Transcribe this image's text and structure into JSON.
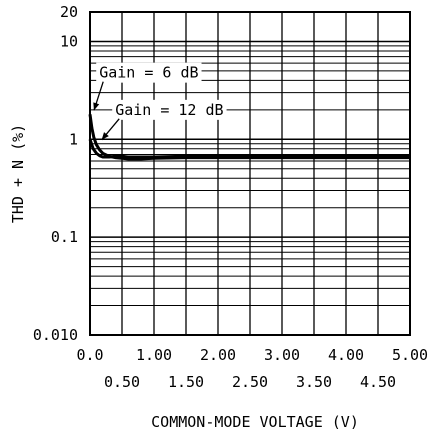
{
  "chart_data": {
    "type": "line",
    "xlabel": "COMMON-MODE VOLTAGE (V)",
    "ylabel": "THD + N (%)",
    "xlim": [
      0,
      5
    ],
    "ylim": [
      0.01,
      20
    ],
    "yscale": "log",
    "grid": true,
    "x_ticks": [
      {
        "value": 0.0,
        "label": "0.0"
      },
      {
        "value": 0.5,
        "label": "0.50"
      },
      {
        "value": 1.0,
        "label": "1.00"
      },
      {
        "value": 1.5,
        "label": "1.50"
      },
      {
        "value": 2.0,
        "label": "2.00"
      },
      {
        "value": 2.5,
        "label": "2.50"
      },
      {
        "value": 3.0,
        "label": "3.00"
      },
      {
        "value": 3.5,
        "label": "3.50"
      },
      {
        "value": 4.0,
        "label": "4.00"
      },
      {
        "value": 4.5,
        "label": "4.50"
      },
      {
        "value": 5.0,
        "label": "5.00"
      }
    ],
    "y_ticks": [
      {
        "value": 20,
        "label": "20"
      },
      {
        "value": 10,
        "label": "10"
      },
      {
        "value": 1,
        "label": "1"
      },
      {
        "value": 0.1,
        "label": "0.1"
      },
      {
        "value": 0.01,
        "label": "0.010"
      }
    ],
    "annotations": [
      {
        "text": "Gain = 6 dB",
        "x": 0.05,
        "y": 4.8,
        "target_x": 0.0,
        "target_y": 1.8
      },
      {
        "text": "Gain = 12 dB",
        "x": 0.3,
        "y": 2.0,
        "target_x": 0.12,
        "target_y": 0.9
      }
    ],
    "series": [
      {
        "x": [
          0.0,
          0.03,
          0.06,
          0.1,
          0.15,
          0.2,
          0.3,
          0.4,
          0.5,
          0.6,
          0.8,
          1.0,
          1.5,
          2.0,
          2.5,
          3.0,
          3.5,
          4.0,
          4.5,
          5.0
        ],
        "values": [
          1.8,
          1.3,
          1.05,
          0.88,
          0.78,
          0.72,
          0.67,
          0.65,
          0.64,
          0.63,
          0.63,
          0.64,
          0.65,
          0.65,
          0.65,
          0.65,
          0.65,
          0.65,
          0.65,
          0.65
        ],
        "color": "#000000"
      },
      {
        "x": [
          0.0,
          0.05,
          0.1,
          0.15,
          0.2,
          0.3,
          0.4,
          0.5,
          0.6,
          0.8,
          1.0,
          1.5,
          2.0,
          2.5,
          3.0,
          3.5,
          4.0,
          4.5,
          5.0
        ],
        "values": [
          1.0,
          0.8,
          0.72,
          0.68,
          0.66,
          0.66,
          0.67,
          0.67,
          0.66,
          0.66,
          0.66,
          0.67,
          0.67,
          0.67,
          0.67,
          0.67,
          0.67,
          0.67,
          0.67
        ],
        "color": "#000000"
      }
    ]
  }
}
